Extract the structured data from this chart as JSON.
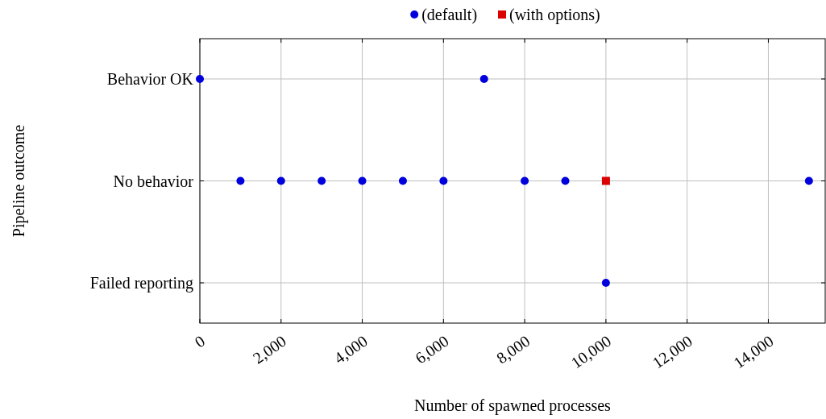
{
  "chart_data": {
    "type": "scatter",
    "orientation": "horizontal",
    "xlabel": "Number of spawned processes",
    "ylabel": "Pipeline outcome",
    "categories": [
      "Behavior OK",
      "No behavior",
      "Failed reporting"
    ],
    "xlim": [
      0,
      15400
    ],
    "xticks": [
      {
        "value": 0,
        "label": "0"
      },
      {
        "value": 2000,
        "label": "2,000"
      },
      {
        "value": 4000,
        "label": "4,000"
      },
      {
        "value": 6000,
        "label": "6,000"
      },
      {
        "value": 8000,
        "label": "8,000"
      },
      {
        "value": 10000,
        "label": "10,000"
      },
      {
        "value": 12000,
        "label": "12,000"
      },
      {
        "value": 14000,
        "label": "14,000"
      }
    ],
    "grid": true,
    "legend": "top",
    "series": [
      {
        "name": "(default)",
        "color": "#0000dd",
        "marker": "circle",
        "values": [
          0,
          1000,
          10000
        ]
      },
      {
        "name": "(with options)",
        "color": "#dd0000",
        "marker": "square",
        "values": [
          null,
          10000,
          null
        ]
      },
      {
        "color": "#0000dd",
        "marker": "circle",
        "values": [
          7000,
          2000,
          null
        ]
      },
      {
        "color": "#0000dd",
        "marker": "circle",
        "values": [
          null,
          3000,
          null
        ]
      },
      {
        "color": "#0000dd",
        "marker": "circle",
        "values": [
          null,
          4000,
          null
        ]
      },
      {
        "color": "#0000dd",
        "marker": "circle",
        "values": [
          null,
          5000,
          null
        ]
      },
      {
        "color": "#0000dd",
        "marker": "circle",
        "values": [
          null,
          6000,
          null
        ]
      },
      {
        "color": "#0000dd",
        "marker": "circle",
        "values": [
          null,
          8000,
          null
        ]
      },
      {
        "color": "#0000dd",
        "marker": "circle",
        "values": [
          null,
          9000,
          null
        ]
      },
      {
        "color": "#0000dd",
        "marker": "circle",
        "values": [
          null,
          15000,
          null
        ]
      }
    ]
  }
}
